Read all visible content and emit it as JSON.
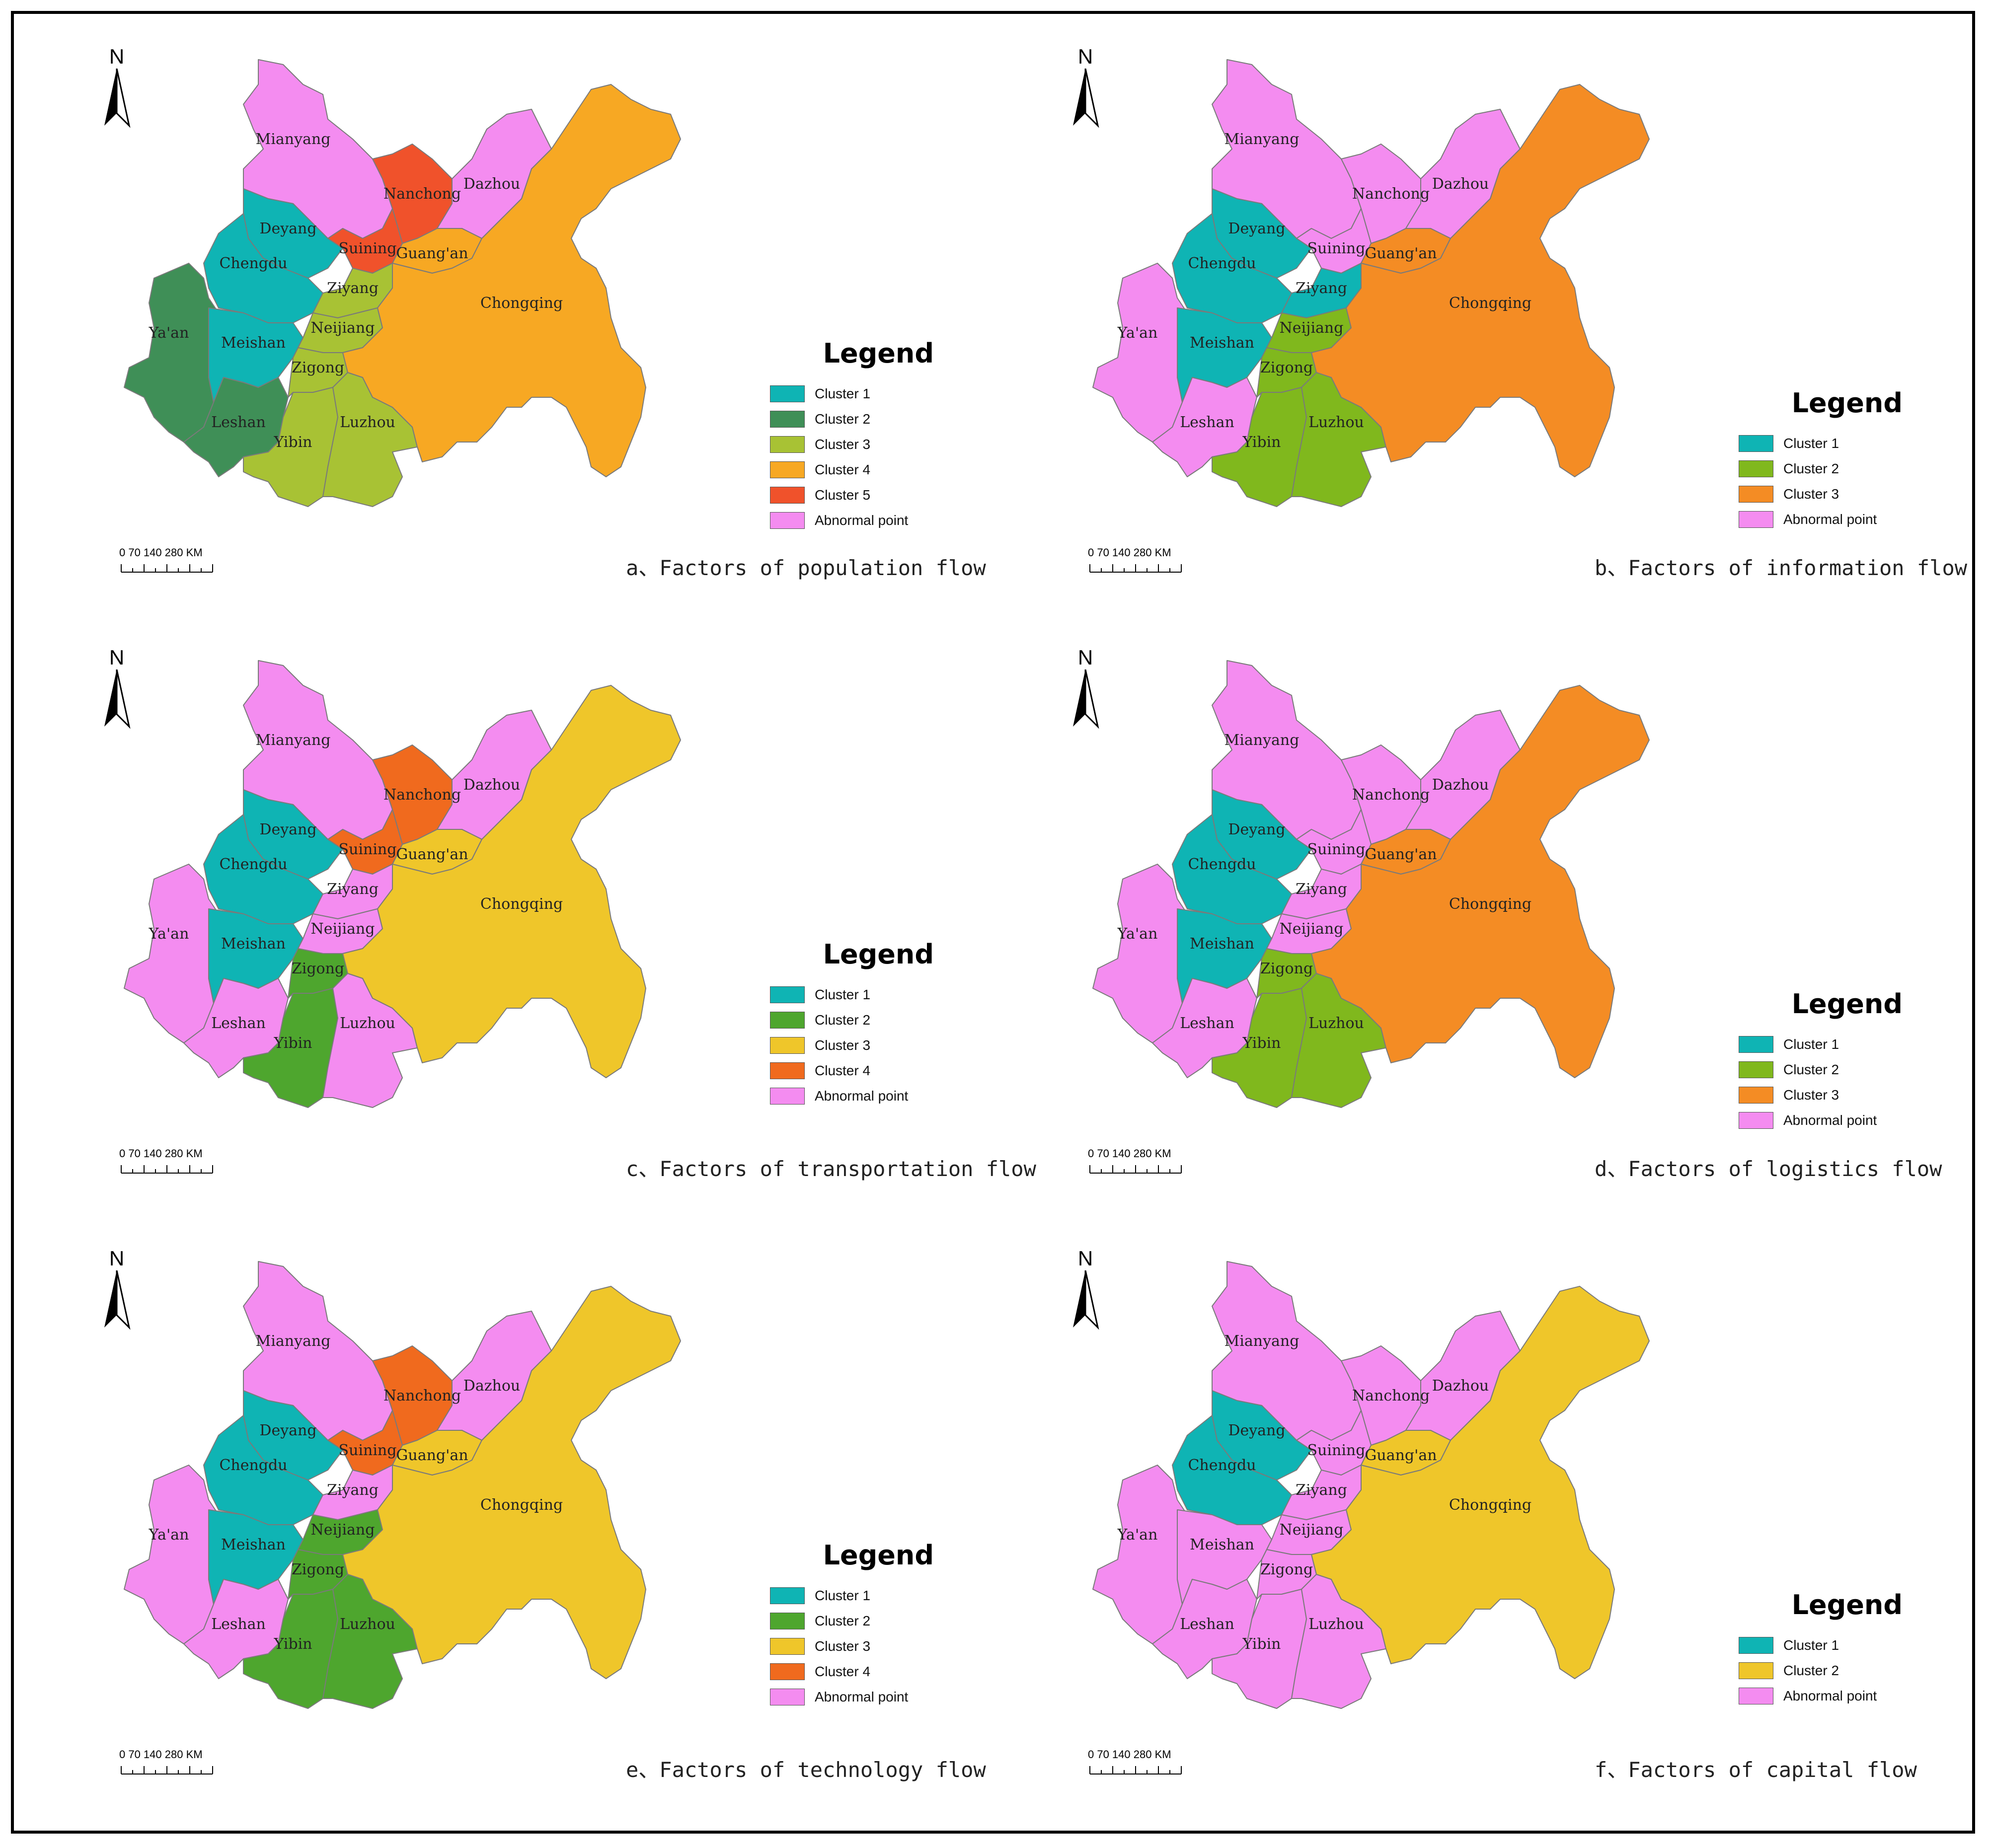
{
  "colors": {
    "teal": "#0fb4b4",
    "dark_green": "#3f8f57",
    "olive": "#a8c234",
    "orange_a": "#f7a823",
    "red_orange": "#f0522b",
    "pink": "#f48cf0",
    "green_b": "#80b81d",
    "orange_b": "#f48c24",
    "yellow": "#efc62a",
    "orange_c": "#f06a1e",
    "green_c": "#4ea62e",
    "border": "#7a7a7a"
  },
  "north_label": "N",
  "legend_title": "Legend",
  "scale_text": "0   70  140       280 KM",
  "cities": [
    "Mianyang",
    "Deyang",
    "Chengdu",
    "Ya'an",
    "Meishan",
    "Leshan",
    "Nanchong",
    "Suining",
    "Dazhou",
    "Guang'an",
    "Ziyang",
    "Neijiang",
    "Zigong",
    "Yibin",
    "Luzhou",
    "Chongqing"
  ],
  "panels": [
    {
      "id": "a",
      "caption": "a、Factors of population flow",
      "legend": [
        {
          "label": "Cluster 1",
          "color": "#0fb4b4"
        },
        {
          "label": "Cluster 2",
          "color": "#3f8f57"
        },
        {
          "label": "Cluster 3",
          "color": "#a8c234"
        },
        {
          "label": "Cluster 4",
          "color": "#f7a823"
        },
        {
          "label": "Cluster 5",
          "color": "#f0522b"
        },
        {
          "label": "Abnormal point",
          "color": "#f48cf0"
        }
      ],
      "fills": {
        "Mianyang": "#f48cf0",
        "Deyang": "#0fb4b4",
        "Chengdu": "#0fb4b4",
        "Ya'an": "#3f8f57",
        "Meishan": "#0fb4b4",
        "Leshan": "#3f8f57",
        "Nanchong": "#f0522b",
        "Suining": "#f0522b",
        "Dazhou": "#f48cf0",
        "Guang'an": "#f7a823",
        "Ziyang": "#a8c234",
        "Neijiang": "#a8c234",
        "Zigong": "#a8c234",
        "Yibin": "#a8c234",
        "Luzhou": "#a8c234",
        "Chongqing": "#f7a823"
      }
    },
    {
      "id": "b",
      "caption": "b、Factors of information flow",
      "legend": [
        {
          "label": "Cluster 1",
          "color": "#0fb4b4"
        },
        {
          "label": "Cluster 2",
          "color": "#80b81d"
        },
        {
          "label": "Cluster 3",
          "color": "#f48c24"
        },
        {
          "label": "Abnormal point",
          "color": "#f48cf0"
        }
      ],
      "fills": {
        "Mianyang": "#f48cf0",
        "Deyang": "#0fb4b4",
        "Chengdu": "#0fb4b4",
        "Ya'an": "#f48cf0",
        "Meishan": "#0fb4b4",
        "Leshan": "#f48cf0",
        "Nanchong": "#f48cf0",
        "Suining": "#f48cf0",
        "Dazhou": "#f48cf0",
        "Guang'an": "#f48c24",
        "Ziyang": "#0fb4b4",
        "Neijiang": "#80b81d",
        "Zigong": "#80b81d",
        "Yibin": "#80b81d",
        "Luzhou": "#80b81d",
        "Chongqing": "#f48c24"
      }
    },
    {
      "id": "c",
      "caption": "c、Factors of transportation flow",
      "legend": [
        {
          "label": "Cluster 1",
          "color": "#0fb4b4"
        },
        {
          "label": "Cluster 2",
          "color": "#4ea62e"
        },
        {
          "label": "Cluster 3",
          "color": "#efc62a"
        },
        {
          "label": "Cluster 4",
          "color": "#f06a1e"
        },
        {
          "label": "Abnormal point",
          "color": "#f48cf0"
        }
      ],
      "fills": {
        "Mianyang": "#f48cf0",
        "Deyang": "#0fb4b4",
        "Chengdu": "#0fb4b4",
        "Ya'an": "#f48cf0",
        "Meishan": "#0fb4b4",
        "Leshan": "#f48cf0",
        "Nanchong": "#f06a1e",
        "Suining": "#f06a1e",
        "Dazhou": "#f48cf0",
        "Guang'an": "#efc62a",
        "Ziyang": "#f48cf0",
        "Neijiang": "#f48cf0",
        "Zigong": "#4ea62e",
        "Yibin": "#4ea62e",
        "Luzhou": "#f48cf0",
        "Chongqing": "#efc62a"
      }
    },
    {
      "id": "d",
      "caption": "d、Factors of logistics flow",
      "legend": [
        {
          "label": "Cluster 1",
          "color": "#0fb4b4"
        },
        {
          "label": "Cluster 2",
          "color": "#80b81d"
        },
        {
          "label": "Cluster 3",
          "color": "#f48c24"
        },
        {
          "label": "Abnormal point",
          "color": "#f48cf0"
        }
      ],
      "fills": {
        "Mianyang": "#f48cf0",
        "Deyang": "#0fb4b4",
        "Chengdu": "#0fb4b4",
        "Ya'an": "#f48cf0",
        "Meishan": "#0fb4b4",
        "Leshan": "#f48cf0",
        "Nanchong": "#f48cf0",
        "Suining": "#f48cf0",
        "Dazhou": "#f48cf0",
        "Guang'an": "#f48c24",
        "Ziyang": "#f48cf0",
        "Neijiang": "#f48cf0",
        "Zigong": "#80b81d",
        "Yibin": "#80b81d",
        "Luzhou": "#80b81d",
        "Chongqing": "#f48c24"
      }
    },
    {
      "id": "e",
      "caption": "e、Factors of technology flow",
      "legend": [
        {
          "label": "Cluster 1",
          "color": "#0fb4b4"
        },
        {
          "label": "Cluster 2",
          "color": "#4ea62e"
        },
        {
          "label": "Cluster 3",
          "color": "#efc62a"
        },
        {
          "label": "Cluster 4",
          "color": "#f06a1e"
        },
        {
          "label": "Abnormal point",
          "color": "#f48cf0"
        }
      ],
      "fills": {
        "Mianyang": "#f48cf0",
        "Deyang": "#0fb4b4",
        "Chengdu": "#0fb4b4",
        "Ya'an": "#f48cf0",
        "Meishan": "#0fb4b4",
        "Leshan": "#f48cf0",
        "Nanchong": "#f06a1e",
        "Suining": "#f06a1e",
        "Dazhou": "#f48cf0",
        "Guang'an": "#efc62a",
        "Ziyang": "#f48cf0",
        "Neijiang": "#4ea62e",
        "Zigong": "#4ea62e",
        "Yibin": "#4ea62e",
        "Luzhou": "#4ea62e",
        "Chongqing": "#efc62a"
      }
    },
    {
      "id": "f",
      "caption": "f、Factors of capital flow",
      "legend": [
        {
          "label": "Cluster 1",
          "color": "#0fb4b4"
        },
        {
          "label": "Cluster 2",
          "color": "#efc62a"
        },
        {
          "label": "Abnormal point",
          "color": "#f48cf0"
        }
      ],
      "fills": {
        "Mianyang": "#f48cf0",
        "Deyang": "#0fb4b4",
        "Chengdu": "#0fb4b4",
        "Ya'an": "#f48cf0",
        "Meishan": "#f48cf0",
        "Leshan": "#f48cf0",
        "Nanchong": "#f48cf0",
        "Suining": "#f48cf0",
        "Dazhou": "#f48cf0",
        "Guang'an": "#efc62a",
        "Ziyang": "#f48cf0",
        "Neijiang": "#f48cf0",
        "Zigong": "#f48cf0",
        "Yibin": "#f48cf0",
        "Luzhou": "#f48cf0",
        "Chongqing": "#efc62a"
      }
    }
  ]
}
